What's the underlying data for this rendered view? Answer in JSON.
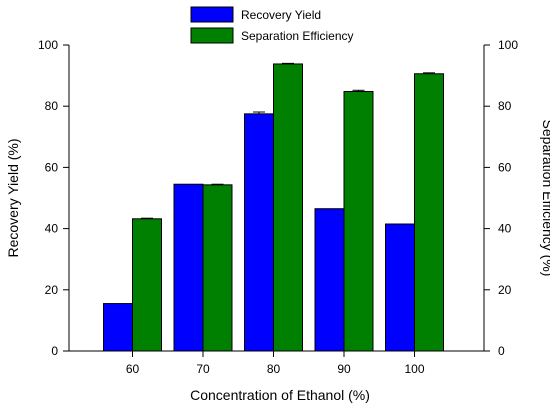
{
  "chart_data": {
    "type": "bar",
    "title": "",
    "xlabel": "Concentration of Ethanol (%)",
    "ylabel": "Recovery Yield (%)",
    "y2label": "Separation Efficiency (%)",
    "categories": [
      "60",
      "70",
      "80",
      "90",
      "100"
    ],
    "ylim": [
      0,
      100
    ],
    "y2lim": [
      0,
      100
    ],
    "yticks": [
      0,
      20,
      40,
      60,
      80,
      100
    ],
    "y2ticks": [
      0,
      20,
      40,
      60,
      80,
      100
    ],
    "grid": false,
    "legend_position": "top-center",
    "series": [
      {
        "name": "Recovery Yield",
        "axis": "left",
        "color": "#0000ff",
        "values": [
          15.5,
          54.5,
          77.5,
          46.5,
          41.5
        ],
        "errors": [
          0,
          0,
          0.6,
          0,
          0
        ]
      },
      {
        "name": "Separation Efficiency",
        "axis": "right",
        "color": "#008000",
        "values": [
          43.2,
          54.3,
          93.8,
          84.8,
          90.6
        ],
        "errors": [
          0.2,
          0.2,
          0.2,
          0.4,
          0.3
        ]
      }
    ]
  }
}
